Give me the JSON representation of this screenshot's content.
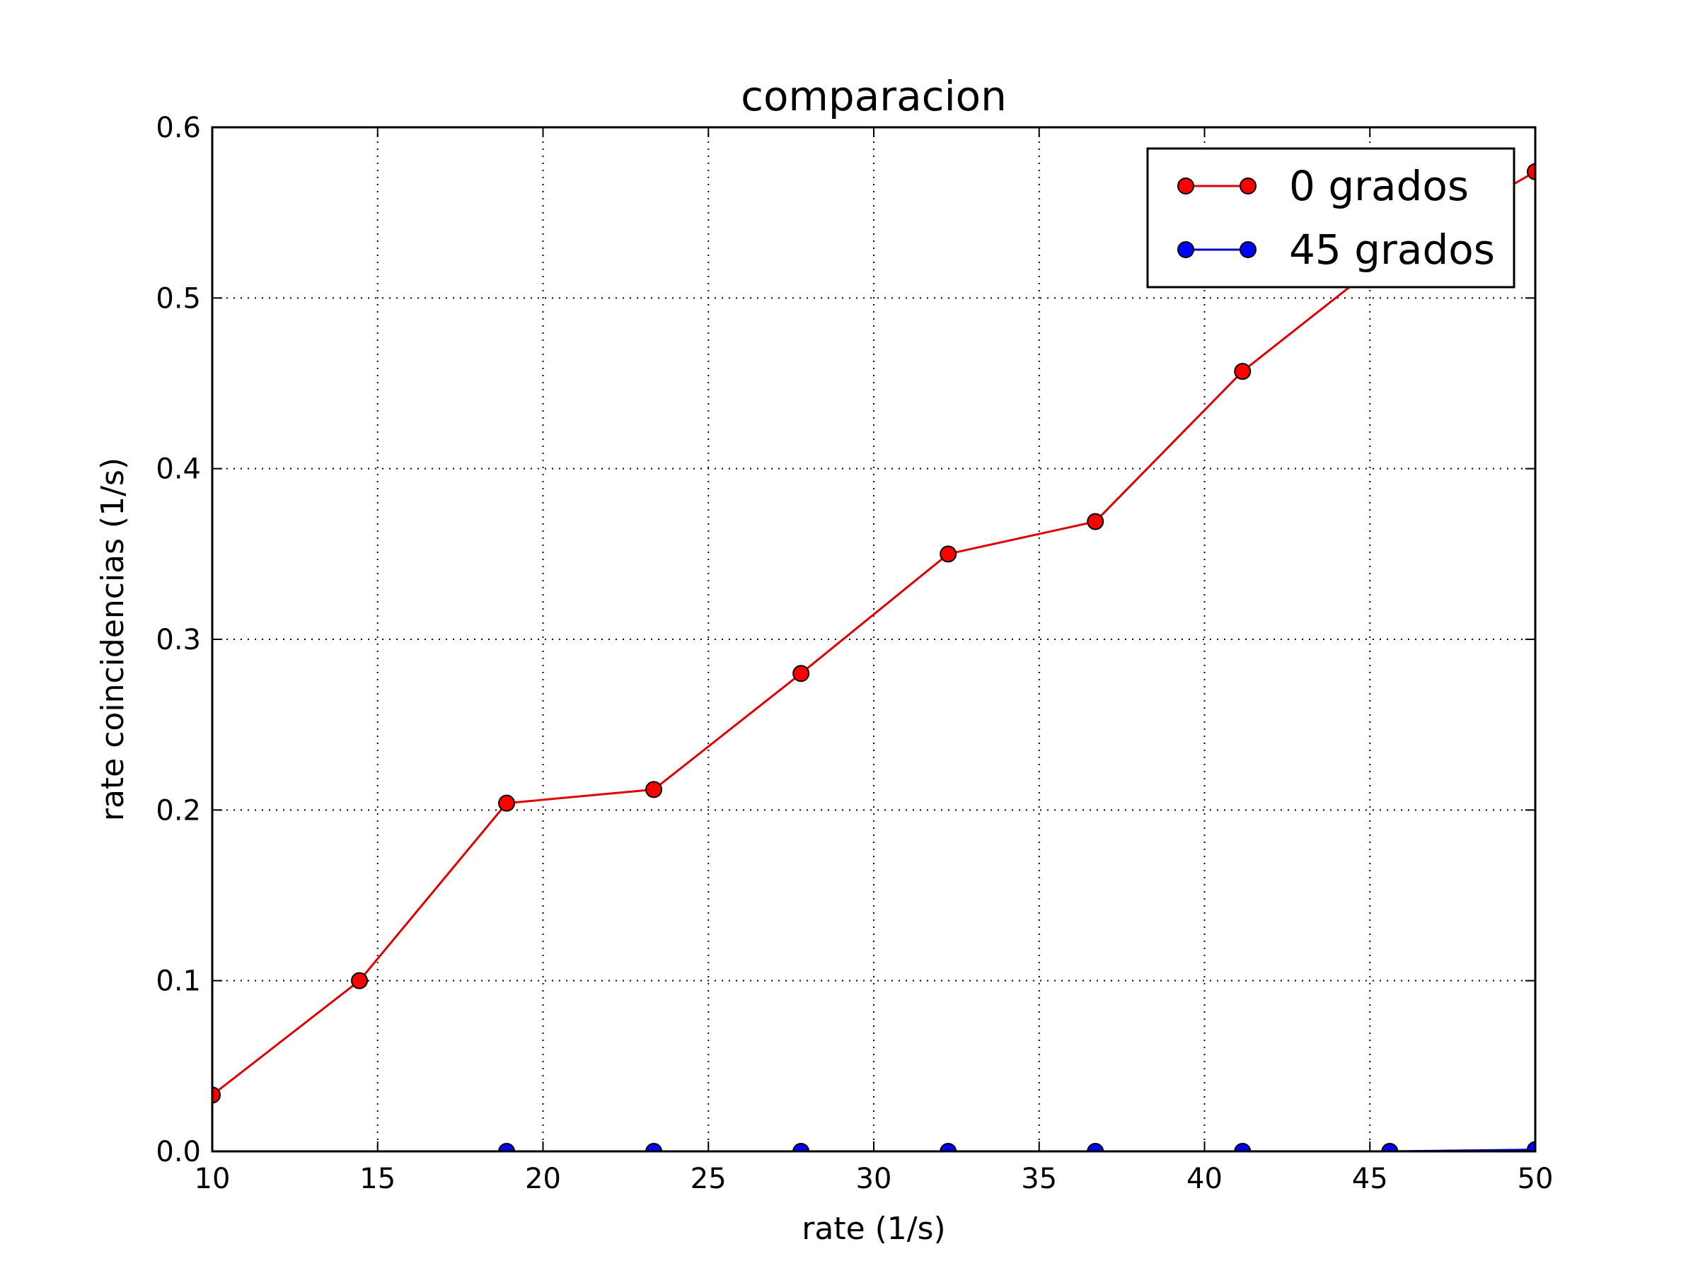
{
  "chart_data": {
    "type": "line",
    "title": "comparacion",
    "xlabel": "rate (1/s)",
    "ylabel": "rate coincidencias (1/s)",
    "xlim": [
      10,
      50
    ],
    "ylim": [
      0.0,
      0.6
    ],
    "xticks": [
      10,
      15,
      20,
      25,
      30,
      35,
      40,
      45,
      50
    ],
    "xtick_labels": [
      "10",
      "15",
      "20",
      "25",
      "30",
      "35",
      "40",
      "45",
      "50"
    ],
    "yticks": [
      0.0,
      0.1,
      0.2,
      0.3,
      0.4,
      0.5,
      0.6
    ],
    "ytick_labels": [
      "0.0",
      "0.1",
      "0.2",
      "0.3",
      "0.4",
      "0.5",
      "0.6"
    ],
    "grid": true,
    "legend_position": "top-right",
    "series": [
      {
        "name": "0 grados",
        "color": "#ff0000",
        "line_color": "#e00000",
        "marker": "circle",
        "x": [
          10.0,
          14.45,
          18.9,
          23.35,
          27.8,
          32.25,
          36.7,
          41.15,
          45.6,
          50.0
        ],
        "y": [
          0.033,
          0.1,
          0.204,
          0.212,
          0.28,
          0.35,
          0.369,
          0.457,
          0.525,
          0.574
        ]
      },
      {
        "name": "45 grados",
        "color": "#0000ff",
        "line_color": "#0000cc",
        "marker": "circle",
        "x": [
          18.9,
          23.35,
          27.8,
          32.25,
          36.7,
          41.15,
          45.6,
          50.0
        ],
        "y": [
          0.0,
          0.0,
          0.0,
          0.0,
          0.0,
          0.0,
          0.0,
          0.001
        ]
      }
    ]
  }
}
